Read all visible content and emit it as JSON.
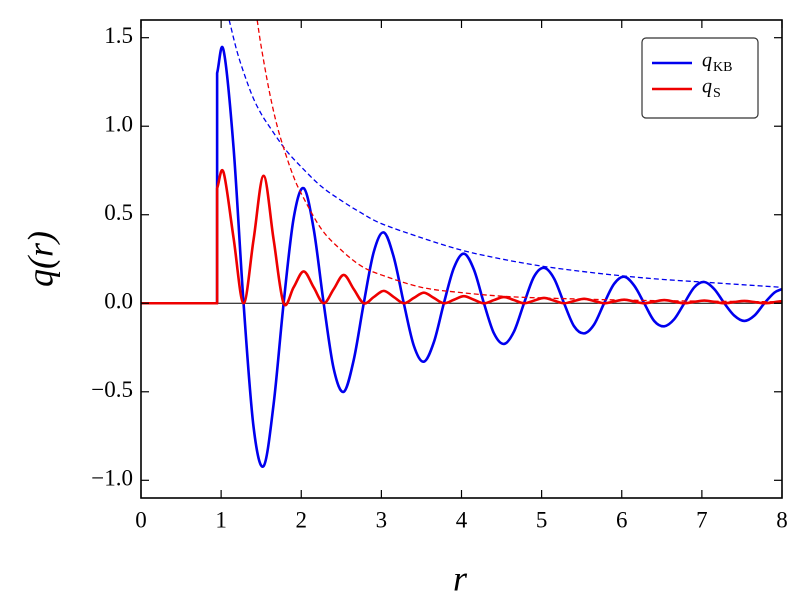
{
  "chart_data": {
    "type": "line",
    "xlabel": "r",
    "ylabel": "q(r)",
    "xlim": [
      0,
      8
    ],
    "ylim": [
      -1.1,
      1.6
    ],
    "xticks": [
      0,
      1,
      2,
      3,
      4,
      5,
      6,
      7,
      8
    ],
    "yticks": [
      {
        "value": -1.0,
        "label": "−1.0"
      },
      {
        "value": -0.5,
        "label": "−0.5"
      },
      {
        "value": 0,
        "label": "0.0"
      },
      0.5,
      {
        "value": 1.0,
        "label": "1.0"
      },
      1.5
    ],
    "axhline": 0,
    "legend": "upper right",
    "series": [
      {
        "name": "q",
        "subscript": "KB",
        "color": "#0000ee",
        "x": [
          0,
          0.95,
          0.95,
          1.03,
          1.155,
          1.28,
          1.405,
          1.53,
          1.655,
          1.78,
          1.905,
          2.03,
          2.155,
          2.28,
          2.405,
          2.53,
          2.655,
          2.78,
          2.905,
          3.03,
          3.155,
          3.28,
          3.405,
          3.53,
          3.655,
          3.78,
          3.905,
          4.03,
          4.155,
          4.28,
          4.405,
          4.53,
          4.655,
          4.78,
          4.905,
          5.03,
          5.155,
          5.28,
          5.405,
          5.53,
          5.655,
          5.78,
          5.905,
          6.03,
          6.155,
          6.28,
          6.405,
          6.53,
          6.655,
          6.78,
          6.905,
          7.03,
          7.155,
          7.28,
          7.405,
          7.53,
          7.655,
          7.78,
          7.905,
          8
        ],
        "values": [
          0,
          0,
          1.3,
          1.43,
          0.88,
          0,
          -0.7,
          -0.92,
          -0.57,
          0,
          0.48,
          0.65,
          0.42,
          0,
          -0.37,
          -0.5,
          -0.32,
          0,
          0.29,
          0.4,
          0.26,
          0,
          -0.24,
          -0.33,
          -0.22,
          0,
          0.2,
          0.28,
          0.19,
          0,
          -0.17,
          -0.23,
          -0.16,
          0,
          0.15,
          0.2,
          0.14,
          0,
          -0.13,
          -0.17,
          -0.12,
          0,
          0.11,
          0.15,
          0.1,
          0,
          -0.1,
          -0.13,
          -0.09,
          0,
          0.09,
          0.12,
          0.08,
          0,
          -0.07,
          -0.1,
          -0.07,
          0,
          0.06,
          0.08
        ]
      },
      {
        "name": "q",
        "subscript": "S",
        "color": "#ee0000",
        "x": [
          0,
          0.95,
          0.95,
          1.03,
          1.155,
          1.28,
          1.405,
          1.53,
          1.655,
          1.78,
          1.905,
          2.03,
          2.155,
          2.28,
          2.405,
          2.53,
          2.655,
          2.78,
          2.905,
          3.03,
          3.155,
          3.28,
          3.405,
          3.53,
          3.655,
          3.78,
          3.905,
          4.03,
          4.155,
          4.28,
          4.405,
          4.53,
          4.655,
          4.78,
          4.905,
          5.03,
          5.155,
          5.28,
          5.405,
          5.53,
          5.655,
          5.78,
          5.905,
          6.03,
          6.155,
          6.28,
          6.405,
          6.53,
          6.655,
          6.78,
          6.905,
          7.03,
          7.155,
          7.28,
          7.405,
          7.53,
          7.655,
          7.78,
          7.905,
          8
        ],
        "values": [
          0,
          0,
          0.65,
          0.74,
          0.37,
          0,
          0.36,
          0.72,
          0.36,
          0,
          0.09,
          0.18,
          0.09,
          0,
          0.08,
          0.16,
          0.08,
          0,
          0.035,
          0.07,
          0.035,
          0,
          0.03,
          0.06,
          0.03,
          0,
          0.02,
          0.04,
          0.02,
          0,
          0.018,
          0.035,
          0.018,
          0,
          0.015,
          0.03,
          0.015,
          0,
          0.013,
          0.025,
          0.013,
          0,
          0.01,
          0.02,
          0.01,
          0,
          0.009,
          0.018,
          0.009,
          0,
          0.008,
          0.015,
          0.008,
          0,
          0.007,
          0.013,
          0.007,
          0,
          0.006,
          0.012
        ]
      },
      {
        "color": "#0000ee",
        "dashed": true,
        "x": [
          1.1,
          1.2,
          1.3,
          1.4,
          1.5,
          1.6,
          1.8,
          2.0,
          2.25,
          2.5,
          2.75,
          3,
          3.5,
          4,
          4.5,
          5,
          5.5,
          6,
          6.5,
          7,
          7.5,
          8
        ],
        "values": [
          1.6,
          1.42,
          1.28,
          1.16,
          1.07,
          1.0,
          0.87,
          0.77,
          0.66,
          0.58,
          0.51,
          0.45,
          0.37,
          0.3,
          0.25,
          0.21,
          0.18,
          0.155,
          0.135,
          0.12,
          0.105,
          0.09
        ]
      },
      {
        "color": "#ee0000",
        "dashed": true,
        "x": [
          1.45,
          1.5,
          1.6,
          1.7,
          1.8,
          1.9,
          2.0,
          2.25,
          2.5,
          2.75,
          3,
          3.5,
          4,
          4.5,
          5,
          6,
          7,
          8
        ],
        "values": [
          1.6,
          1.45,
          1.2,
          1.0,
          0.85,
          0.72,
          0.62,
          0.42,
          0.3,
          0.21,
          0.16,
          0.09,
          0.06,
          0.04,
          0.03,
          0.018,
          0.012,
          0.008
        ]
      }
    ]
  }
}
